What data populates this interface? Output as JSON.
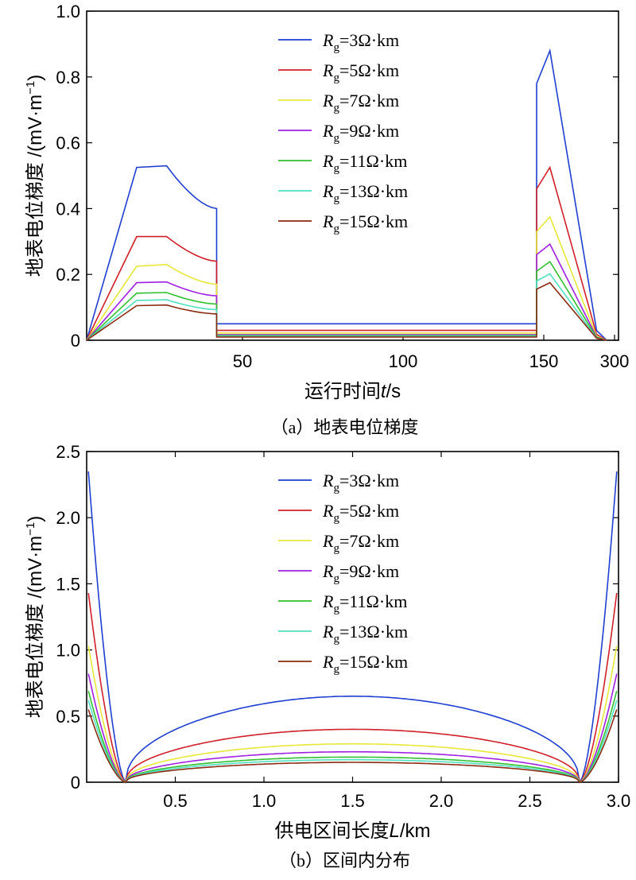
{
  "chart_data": [
    {
      "type": "line",
      "caption": "（a）地表电位梯度",
      "xlabel": "运行时间",
      "xlabel_var": "t",
      "xlabel_unit": "/s",
      "ylabel": "地表电位梯度 /(mV·m",
      "ylabel_sup": "−1",
      "ylabel_close": ")",
      "ylim": [
        0,
        1.0
      ],
      "yticks": [
        "0",
        "0.2",
        "0.4",
        "0.6",
        "0.8",
        "1.0"
      ],
      "xticks": [
        "50",
        "100",
        "150",
        "300"
      ],
      "x_segments": "Piecewise time axis: acceleration 0–39 s, cruise 39–135 s, braking 135–~156 s",
      "x": [
        0,
        15,
        24,
        39,
        39,
        135,
        135,
        139,
        156
      ],
      "series": [
        {
          "name": "R_g=3Ω·km",
          "sub": "g",
          "text": "=3Ω·km",
          "color": "#1f3fd0",
          "values": [
            0,
            0.525,
            0.53,
            0.4,
            0.05,
            0.05,
            0.78,
            0.88,
            0.01
          ]
        },
        {
          "name": "R_g=5Ω·km",
          "sub": "g",
          "text": "=5Ω·km",
          "color": "#d0202a",
          "values": [
            0,
            0.315,
            0.315,
            0.24,
            0.03,
            0.03,
            0.46,
            0.525,
            0.006
          ]
        },
        {
          "name": "R_g=7Ω·km",
          "sub": "g",
          "text": "=7Ω·km",
          "color": "#e8e83a",
          "values": [
            0,
            0.225,
            0.23,
            0.17,
            0.022,
            0.022,
            0.33,
            0.375,
            0.004
          ]
        },
        {
          "name": "R_g=9Ω·km",
          "sub": "g",
          "text": "=9Ω·km",
          "color": "#a020e0",
          "values": [
            0,
            0.175,
            0.177,
            0.135,
            0.017,
            0.017,
            0.26,
            0.292,
            0.003
          ]
        },
        {
          "name": "R_g=11Ω·km",
          "sub": "g",
          "text": "=11Ω·km",
          "color": "#30c030",
          "values": [
            0,
            0.143,
            0.145,
            0.11,
            0.014,
            0.014,
            0.21,
            0.239,
            0.003
          ]
        },
        {
          "name": "R_g=13Ω·km",
          "sub": "g",
          "text": "=13Ω·km",
          "color": "#50e0c0",
          "values": [
            0,
            0.121,
            0.123,
            0.093,
            0.012,
            0.012,
            0.18,
            0.202,
            0.002
          ]
        },
        {
          "name": "R_g=15Ω·km",
          "sub": "g",
          "text": "=15Ω·km",
          "color": "#8a2a10",
          "values": [
            0,
            0.105,
            0.107,
            0.08,
            0.01,
            0.01,
            0.155,
            0.175,
            0.002
          ]
        }
      ]
    },
    {
      "type": "line",
      "caption": "（b）区间内分布",
      "xlabel": "供电区间长度",
      "xlabel_var": "L",
      "xlabel_unit": "/km",
      "ylabel": "地表电位梯度 /(mV·m",
      "ylabel_sup": "−1",
      "ylabel_close": ")",
      "xlim": [
        0,
        3.0
      ],
      "ylim": [
        0,
        2.5
      ],
      "xticks": [
        "0.5",
        "1.0",
        "1.5",
        "2.0",
        "2.5",
        "3.0"
      ],
      "yticks": [
        "0",
        "0.5",
        "1.0",
        "1.5",
        "2.0",
        "2.5"
      ],
      "zero_points_km": [
        0.22,
        2.78
      ],
      "series": [
        {
          "name": "R_g=3Ω·km",
          "sub": "g",
          "text": "=3Ω·km",
          "color": "#1f3fd0",
          "peak_end": 2.35,
          "peak_mid": 0.65
        },
        {
          "name": "R_g=5Ω·km",
          "sub": "g",
          "text": "=5Ω·km",
          "color": "#d0202a",
          "peak_end": 1.43,
          "peak_mid": 0.4
        },
        {
          "name": "R_g=7Ω·km",
          "sub": "g",
          "text": "=7Ω·km",
          "color": "#e8e83a",
          "peak_end": 1.03,
          "peak_mid": 0.29
        },
        {
          "name": "R_g=9Ω·km",
          "sub": "g",
          "text": "=9Ω·km",
          "color": "#a020e0",
          "peak_end": 0.82,
          "peak_mid": 0.23
        },
        {
          "name": "R_g=11Ω·km",
          "sub": "g",
          "text": "=11Ω·km",
          "color": "#30c030",
          "peak_end": 0.69,
          "peak_mid": 0.19
        },
        {
          "name": "R_g=13Ω·km",
          "sub": "g",
          "text": "=13Ω·km",
          "color": "#50e0c0",
          "peak_end": 0.62,
          "peak_mid": 0.17
        },
        {
          "name": "R_g=15Ω·km",
          "sub": "g",
          "text": "=15Ω·km",
          "color": "#8a2a10",
          "peak_end": 0.55,
          "peak_mid": 0.15
        }
      ]
    }
  ]
}
